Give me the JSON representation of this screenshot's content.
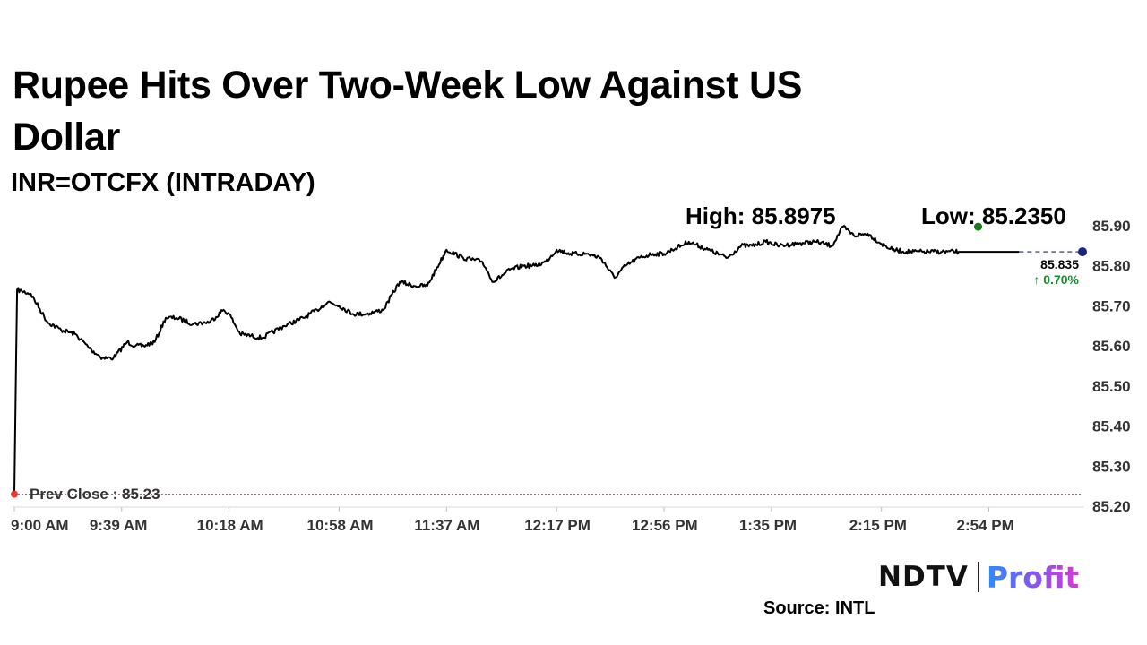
{
  "header": {
    "title": "Rupee Hits Over Two-Week Low Against US Dollar",
    "subtitle": "INR=OTCFX (INTRADAY)"
  },
  "chart_data": {
    "type": "line",
    "title": "Rupee Hits Over Two-Week Low Against US Dollar",
    "subtitle": "INR=OTCFX (INTRADAY)",
    "xlabel": "",
    "ylabel": "",
    "x_ticks": [
      "9:00 AM",
      "9:39 AM",
      "10:18 AM",
      "10:58 AM",
      "11:37 AM",
      "12:17 PM",
      "12:56 PM",
      "1:35 PM",
      "2:15 PM",
      "2:54 PM"
    ],
    "y_ticks": [
      "85.90",
      "85.80",
      "85.70",
      "85.60",
      "85.50",
      "85.40",
      "85.30",
      "85.20"
    ],
    "ylim": [
      85.2,
      85.9
    ],
    "y_axis_position": "right",
    "grid": false,
    "series": [
      {
        "color": "#000000",
        "x": [
          "9:00 AM",
          "9:01 AM",
          "9:06 AM",
          "9:12 AM",
          "9:17 AM",
          "9:22 AM",
          "9:28 AM",
          "9:32 AM",
          "9:36 AM",
          "9:41 AM",
          "9:44 AM",
          "9:47 AM",
          "9:51 AM",
          "9:55 AM",
          "9:59 AM",
          "10:05 AM",
          "10:11 AM",
          "10:16 AM",
          "10:18 AM",
          "10:22 AM",
          "10:30 AM",
          "10:38 AM",
          "10:45 AM",
          "10:50 AM",
          "10:54 AM",
          "10:58 AM",
          "11:03 AM",
          "11:08 AM",
          "11:14 AM",
          "11:20 AM",
          "11:25 AM",
          "11:30 AM",
          "11:37 AM",
          "11:43 AM",
          "11:50 AM",
          "11:54 AM",
          "12:00 PM",
          "12:05 PM",
          "12:09 PM",
          "12:13 PM",
          "12:17 PM",
          "12:22 PM",
          "12:28 PM",
          "12:33 PM",
          "12:38 PM",
          "12:42 PM",
          "12:47 PM",
          "12:52 PM",
          "12:56 PM",
          "12:59 PM",
          "1:05 PM",
          "1:12 PM",
          "1:19 PM",
          "1:24 PM",
          "1:28 PM",
          "1:33 PM",
          "1:38 PM",
          "1:44 PM",
          "1:51 PM",
          "1:57 PM",
          "2:01 PM",
          "2:05 PM",
          "2:10 PM",
          "2:15 PM",
          "2:19 PM",
          "2:24 PM",
          "2:30 PM",
          "2:37 PM",
          "2:43 PM",
          "2:48 PM",
          "2:52 PM",
          "2:54 PM",
          "2:58 PM",
          "3:01 PM",
          "3:05 PM",
          "3:09 PM",
          "3:15 PM",
          "3:23 PM",
          "3:28 PM"
        ],
        "values": [
          85.23,
          85.74,
          85.73,
          85.66,
          85.64,
          85.63,
          85.59,
          85.57,
          85.57,
          85.61,
          85.6,
          85.6,
          85.61,
          85.67,
          85.67,
          85.655,
          85.66,
          85.69,
          85.68,
          85.63,
          85.62,
          85.65,
          85.67,
          85.69,
          85.71,
          85.7,
          85.68,
          85.68,
          85.69,
          85.76,
          85.75,
          85.75,
          85.84,
          85.82,
          85.81,
          85.76,
          85.79,
          85.8,
          85.8,
          85.81,
          85.84,
          85.83,
          85.83,
          85.82,
          85.77,
          85.8,
          85.82,
          85.83,
          85.83,
          85.84,
          85.86,
          85.84,
          85.82,
          85.85,
          85.85,
          85.86,
          85.85,
          85.855,
          85.86,
          85.85,
          85.8975,
          85.875,
          85.88,
          85.855,
          85.84,
          85.835,
          85.835,
          85.835,
          85.835,
          85.835,
          85.835,
          85.835,
          85.835,
          85.835,
          85.835,
          85.835,
          85.835,
          85.835,
          85.835
        ]
      }
    ],
    "prev_close": {
      "label": "Prev Close : 85.23",
      "value": 85.23,
      "color": "#e53935"
    },
    "high": {
      "label": "High: 85.8975",
      "value": 85.8975,
      "color": "#1b7a1b"
    },
    "low": {
      "label": "Low: 85.2350",
      "value": 85.235
    },
    "last": {
      "value": "85.835",
      "change": "0.70%",
      "change_color": "#1b8a2e",
      "marker_color": "#1a237e"
    }
  },
  "footer": {
    "brand_left": "NDTV",
    "brand_right": "Profit",
    "source": "Source: INTL"
  }
}
